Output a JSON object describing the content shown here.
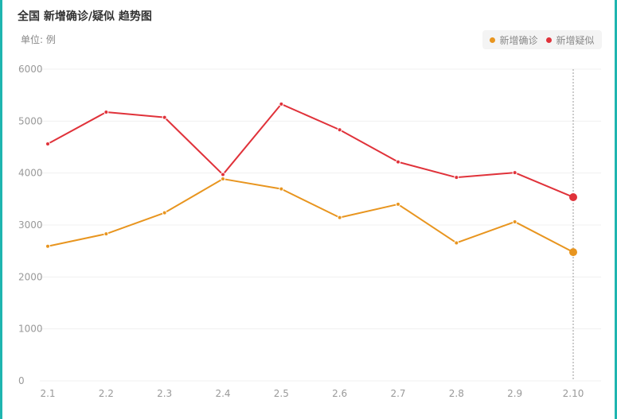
{
  "title": "全国 新增确诊/疑似 趋势图",
  "unit_label": "单位: 例",
  "legend": [
    {
      "label": "新增确诊",
      "color": "#e8951f"
    },
    {
      "label": "新增疑似",
      "color": "#e0323a"
    }
  ],
  "colors": {
    "frame": "#1fb5b0",
    "confirmed": "#e8951f",
    "suspected": "#e0323a"
  },
  "chart_data": {
    "type": "line",
    "categories": [
      "2.1",
      "2.2",
      "2.3",
      "2.4",
      "2.5",
      "2.6",
      "2.7",
      "2.8",
      "2.9",
      "2.10"
    ],
    "series": [
      {
        "name": "新增确诊",
        "values": [
          2590,
          2829,
          3235,
          3887,
          3694,
          3143,
          3399,
          2656,
          3062,
          2478
        ]
      },
      {
        "name": "新增疑似",
        "values": [
          4562,
          5173,
          5072,
          3971,
          5328,
          4833,
          4214,
          3916,
          4008,
          3536
        ]
      }
    ],
    "yticks": [
      "0",
      "1000",
      "2000",
      "3000",
      "4000",
      "5000",
      "6000"
    ],
    "ylim": [
      0,
      6000
    ],
    "grid": true,
    "highlight": "2.10",
    "legend_position": "top-right"
  }
}
